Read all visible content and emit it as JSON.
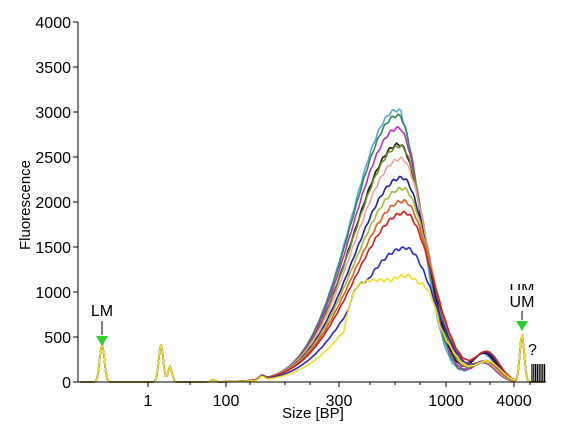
{
  "chart_data": {
    "type": "line",
    "xlabel": "Size [BP]",
    "ylabel": "Fluorescence",
    "ylim": [
      0,
      4000
    ],
    "y_ticks": [
      "0",
      "500",
      "1000",
      "1500",
      "2000",
      "2500",
      "3000",
      "3500",
      "4000"
    ],
    "x_ticks": [
      "1",
      "100",
      "300",
      "1000",
      "4000"
    ],
    "grid": false,
    "annotations": {
      "lower_marker": "LM",
      "upper_marker": "UM",
      "upper_marker_overlap": "UM",
      "unknown_peak": "?"
    },
    "series": [
      {
        "color": "#5aa6d6",
        "peak": 3020
      },
      {
        "color": "#2e8b57",
        "peak": 2960
      },
      {
        "color": "#c030c0",
        "peak": 2820
      },
      {
        "color": "#1a1a1a",
        "peak": 2640
      },
      {
        "color": "#6b8e23",
        "peak": 2620
      },
      {
        "color": "#f4a0a0",
        "peak": 2480
      },
      {
        "color": "#1f1fa0",
        "peak": 2270
      },
      {
        "color": "#a0c030",
        "peak": 2150
      },
      {
        "color": "#e06020",
        "peak": 2010
      },
      {
        "color": "#d02020",
        "peak": 1880
      },
      {
        "color": "#2a2ac8",
        "peak": 1490
      },
      {
        "color": "#f0e020",
        "peak": 1180
      }
    ]
  }
}
